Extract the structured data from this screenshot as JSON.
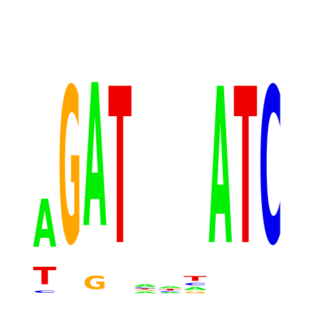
{
  "sequence_logo": {
    "colors": {
      "A": "#00ee00",
      "C": "#0000ee",
      "G": "#ffa500",
      "T": "#ee0000"
    },
    "positions": [
      [
        {
          "base": "C",
          "height": 0.03
        },
        {
          "base": "T",
          "height": 0.22
        },
        {
          "base": "A",
          "height": 0.61
        }
      ],
      [
        {
          "base": "G",
          "height": 2.0
        }
      ],
      [
        {
          "base": "G",
          "height": 0.17
        },
        {
          "base": "A",
          "height": 1.83
        }
      ],
      [
        {
          "base": "T",
          "height": 2.0
        }
      ],
      [
        {
          "base": "A",
          "height": 0.02
        },
        {
          "base": "G",
          "height": 0.01
        },
        {
          "base": "T",
          "height": 0.01
        },
        {
          "base": "C",
          "height": 0.01
        },
        {
          "base": "A",
          "height": 0.03
        }
      ],
      [
        {
          "base": "A",
          "height": 0.01
        },
        {
          "base": "C",
          "height": 0.01
        },
        {
          "base": "T",
          "height": 0.02
        },
        {
          "base": "A",
          "height": 0.02
        }
      ],
      [
        {
          "base": "G",
          "height": 0.02
        },
        {
          "base": "A",
          "height": 0.04
        },
        {
          "base": "C",
          "height": 0.03
        },
        {
          "base": "T",
          "height": 0.06
        }
      ],
      [
        {
          "base": "A",
          "height": 2.0
        }
      ],
      [
        {
          "base": "T",
          "height": 2.0
        }
      ],
      [
        {
          "base": "C",
          "height": 2.0
        }
      ]
    ]
  }
}
